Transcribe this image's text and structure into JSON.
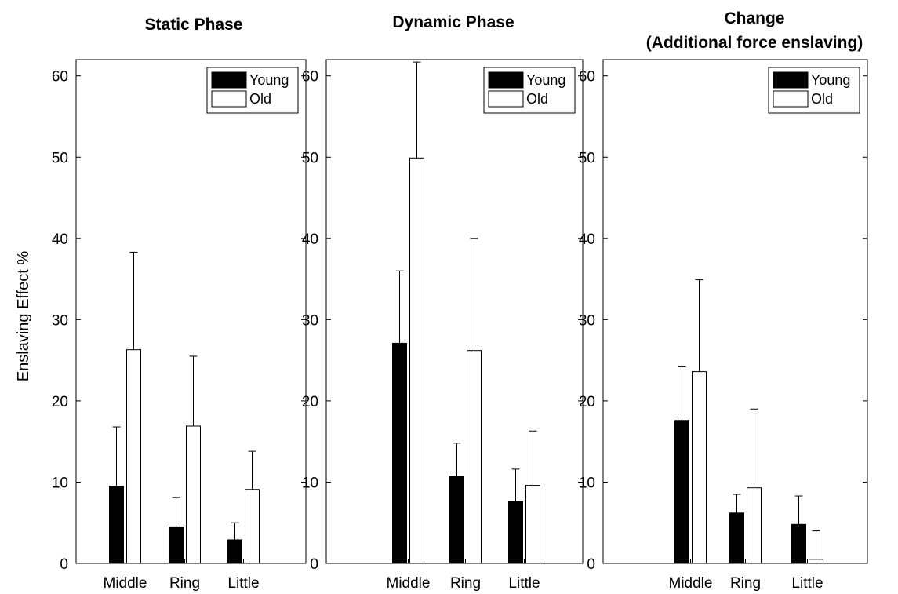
{
  "figure": {
    "ylabel": "Enslaving Effect %"
  },
  "chart_data": [
    {
      "type": "bar",
      "title": [
        "Static Phase"
      ],
      "categories": [
        "Middle",
        "Ring",
        "Little"
      ],
      "ylim": [
        0,
        62
      ],
      "yticks": [
        0,
        10,
        20,
        30,
        40,
        50,
        60
      ],
      "ylabel": "Enslaving Effect %",
      "legend": "top-right",
      "series": [
        {
          "name": "Young",
          "color": "#000000",
          "values": [
            9.5,
            4.5,
            2.9
          ],
          "errors": [
            7.3,
            3.6,
            2.1
          ]
        },
        {
          "name": "Old",
          "color": "#ffffff",
          "values": [
            26.3,
            16.9,
            9.1
          ],
          "errors": [
            12.0,
            8.6,
            4.7
          ]
        }
      ]
    },
    {
      "type": "bar",
      "title": [
        "Dynamic Phase"
      ],
      "categories": [
        "Middle",
        "Ring",
        "Little"
      ],
      "ylim": [
        0,
        62
      ],
      "yticks": [
        0,
        10,
        20,
        30,
        40,
        50,
        60
      ],
      "ylabel": "",
      "legend": "top-right",
      "series": [
        {
          "name": "Young",
          "color": "#000000",
          "values": [
            27.1,
            10.7,
            7.6
          ],
          "errors": [
            8.9,
            4.1,
            4.0
          ]
        },
        {
          "name": "Old",
          "color": "#ffffff",
          "values": [
            49.9,
            26.2,
            9.6
          ],
          "errors": [
            11.8,
            13.8,
            6.7
          ]
        }
      ]
    },
    {
      "type": "bar",
      "title": [
        "Change",
        "(Additional force enslaving)"
      ],
      "categories": [
        "Middle",
        "Ring",
        "Little"
      ],
      "ylim": [
        0,
        62
      ],
      "yticks": [
        0,
        10,
        20,
        30,
        40,
        50,
        60
      ],
      "ylabel": "",
      "legend": "top-right",
      "series": [
        {
          "name": "Young",
          "color": "#000000",
          "values": [
            17.6,
            6.2,
            4.8
          ],
          "errors": [
            6.6,
            2.3,
            3.5
          ]
        },
        {
          "name": "Old",
          "color": "#ffffff",
          "values": [
            23.6,
            9.3,
            0.5
          ],
          "errors": [
            11.3,
            9.7,
            3.5
          ]
        }
      ]
    }
  ]
}
